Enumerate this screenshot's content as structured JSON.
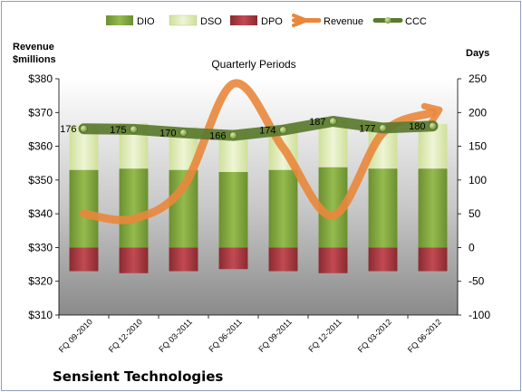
{
  "company": "Sensient Technologies",
  "chart_data": {
    "type": "bar",
    "title": "Quarterly Periods",
    "categories": [
      "FQ 09-2010",
      "FQ 12-2010",
      "FQ 03-2011",
      "FQ 06-2011",
      "FQ 09-2011",
      "FQ 12-2011",
      "FQ 03-2012",
      "FQ 06-2012"
    ],
    "left_axis": {
      "label_line1": "Revenue",
      "label_line2": "$millions",
      "range": [
        310,
        380
      ],
      "step": 10,
      "tick_prefix": "$"
    },
    "right_axis": {
      "label": "Days",
      "range": [
        -100,
        250
      ],
      "step": 50
    },
    "series": [
      {
        "name": "DIO",
        "axis": "right",
        "kind": "stacked-bar",
        "color": "#7ea33c",
        "values": [
          115,
          117,
          115,
          112,
          115,
          119,
          117,
          117
        ]
      },
      {
        "name": "DSO",
        "axis": "right",
        "kind": "stacked-bar",
        "color": "#e1edbd",
        "values": [
          66,
          67,
          63,
          61,
          63,
          71,
          65,
          66
        ]
      },
      {
        "name": "DPO",
        "axis": "right",
        "kind": "negative-bar",
        "color": "#a3363d",
        "values": [
          -35,
          -38,
          -35,
          -32,
          -35,
          -38,
          -35,
          -35
        ]
      },
      {
        "name": "Revenue",
        "axis": "left",
        "kind": "line",
        "color": "#e9873b",
        "values": [
          340,
          338.5,
          348,
          378.5,
          359.5,
          339.5,
          364,
          370
        ]
      },
      {
        "name": "CCC",
        "axis": "right",
        "kind": "line",
        "color": "#5a7a2e",
        "values": [
          176,
          175,
          170,
          166,
          174,
          187,
          177,
          180
        ],
        "labels": [
          "176",
          "175",
          "170",
          "166",
          "174",
          "187",
          "177",
          "180"
        ]
      }
    ],
    "legend_position": "top",
    "grid": false
  }
}
